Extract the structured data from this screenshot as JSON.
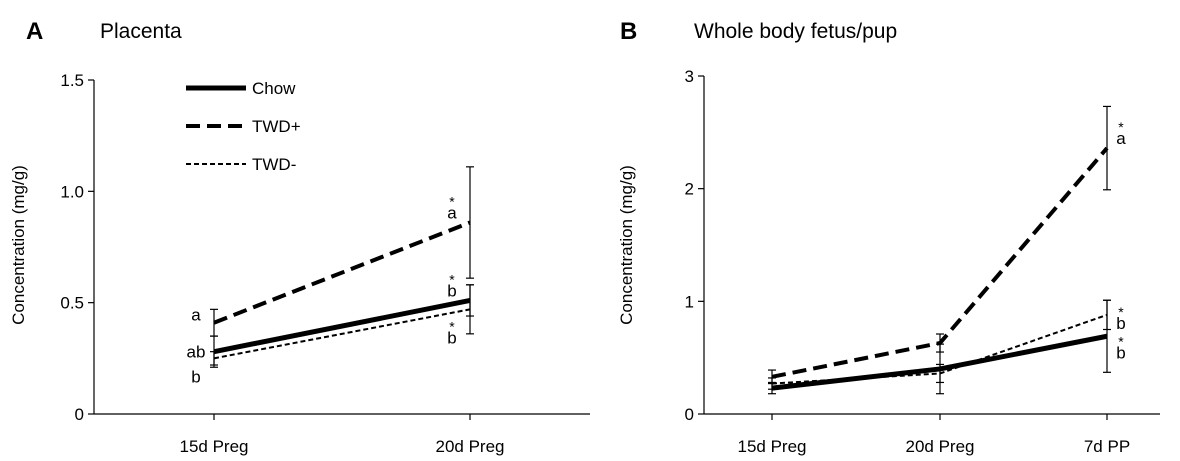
{
  "chart_data": [
    {
      "panel": "A",
      "type": "line",
      "title": "Placenta",
      "xlabel": "",
      "ylabel": "Concentration (mg/g)",
      "categories": [
        "15d Preg",
        "20d Preg"
      ],
      "ylim": [
        0,
        1.5
      ],
      "yticks": [
        "0",
        "0.5",
        "1.0",
        "1.5"
      ],
      "legend": {
        "placement": "top-left",
        "entries": [
          {
            "label": "Chow",
            "style": "solid"
          },
          {
            "label": "TWD+",
            "style": "dashed"
          },
          {
            "label": "TWD-",
            "style": "dotted"
          }
        ]
      },
      "series": [
        {
          "name": "Chow",
          "style": "solid",
          "values": [
            0.28,
            0.51
          ],
          "errors": [
            0.07,
            0.07
          ],
          "sig": [
            "ab",
            "b"
          ],
          "star": [
            false,
            true
          ]
        },
        {
          "name": "TWD+",
          "style": "dashed",
          "values": [
            0.41,
            0.86
          ],
          "errors": [
            0.06,
            0.25
          ],
          "sig": [
            "a",
            "a"
          ],
          "star": [
            false,
            true
          ]
        },
        {
          "name": "TWD-",
          "style": "dotted",
          "values": [
            0.25,
            0.47
          ],
          "errors": [
            0.03,
            0.11
          ],
          "sig": [
            "b",
            "b"
          ],
          "star": [
            false,
            true
          ]
        }
      ]
    },
    {
      "panel": "B",
      "type": "line",
      "title": "Whole body fetus/pup",
      "xlabel": "",
      "ylabel": "Concentration (mg/g)",
      "categories": [
        "15d Preg",
        "20d Preg",
        "7d PP"
      ],
      "ylim": [
        0,
        3
      ],
      "yticks": [
        "0",
        "1",
        "2",
        "3"
      ],
      "series": [
        {
          "name": "Chow",
          "style": "solid",
          "values": [
            0.23,
            0.4,
            0.69
          ],
          "errors": [
            0.05,
            0.22,
            0.32
          ],
          "sig": [
            "",
            "",
            "b"
          ],
          "star": [
            false,
            false,
            true
          ]
        },
        {
          "name": "TWD+",
          "style": "dashed",
          "values": [
            0.33,
            0.63,
            2.36
          ],
          "errors": [
            0.06,
            0.08,
            0.37
          ],
          "sig": [
            "",
            "",
            "a"
          ],
          "star": [
            false,
            false,
            true
          ]
        },
        {
          "name": "TWD-",
          "style": "dotted",
          "values": [
            0.27,
            0.36,
            0.88
          ],
          "errors": [
            0.05,
            0.08,
            0.13
          ],
          "sig": [
            "",
            "",
            "b"
          ],
          "star": [
            false,
            false,
            true
          ]
        }
      ]
    }
  ]
}
